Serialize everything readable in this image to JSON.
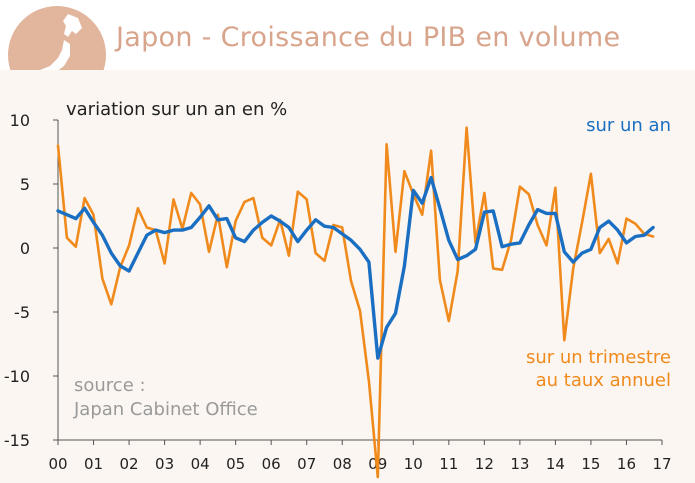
{
  "header": {
    "title": "Japon - Croissance du PIB en volume"
  },
  "chart_data": {
    "type": "line",
    "title": "Japon - Croissance du PIB en volume",
    "ylabel": "variation sur un an en %",
    "xlabel": "",
    "ylim": [
      -15,
      10
    ],
    "xlim": [
      2000,
      2017
    ],
    "y_ticks": [
      "10",
      "5",
      "0",
      "-5",
      "-10",
      "-15"
    ],
    "x_ticks": [
      "00",
      "01",
      "02",
      "03",
      "04",
      "05",
      "06",
      "07",
      "08",
      "09",
      "10",
      "11",
      "12",
      "13",
      "14",
      "15",
      "16",
      "17"
    ],
    "source": "source :\nJapan Cabinet Office",
    "series": [
      {
        "name": "sur un trimestre au taux annuel",
        "label_lines": [
          "sur un trimestre",
          "au taux annuel"
        ],
        "color": "#f08a1c",
        "x": [
          2000.0,
          2000.25,
          2000.5,
          2000.75,
          2001.0,
          2001.25,
          2001.5,
          2001.75,
          2002.0,
          2002.25,
          2002.5,
          2002.75,
          2003.0,
          2003.25,
          2003.5,
          2003.75,
          2004.0,
          2004.25,
          2004.5,
          2004.75,
          2005.0,
          2005.25,
          2005.5,
          2005.75,
          2006.0,
          2006.25,
          2006.5,
          2006.75,
          2007.0,
          2007.25,
          2007.5,
          2007.75,
          2008.0,
          2008.25,
          2008.5,
          2008.75,
          2009.0,
          2009.25,
          2009.5,
          2009.75,
          2010.0,
          2010.25,
          2010.5,
          2010.75,
          2011.0,
          2011.25,
          2011.5,
          2011.75,
          2012.0,
          2012.25,
          2012.5,
          2012.75,
          2013.0,
          2013.25,
          2013.5,
          2013.75,
          2014.0,
          2014.25,
          2014.5,
          2014.75,
          2015.0,
          2015.25,
          2015.5,
          2015.75,
          2016.0,
          2016.25,
          2016.5,
          2016.75
        ],
        "values": [
          8.0,
          0.8,
          0.1,
          3.9,
          2.6,
          -2.4,
          -4.4,
          -1.5,
          0.2,
          3.1,
          1.6,
          1.4,
          -1.2,
          3.8,
          1.5,
          4.3,
          3.4,
          -0.3,
          2.6,
          -1.5,
          2.1,
          3.6,
          3.9,
          0.8,
          0.2,
          2.2,
          -0.6,
          4.4,
          3.8,
          -0.4,
          -1.0,
          1.8,
          1.6,
          -2.6,
          -4.9,
          -10.4,
          -17.9,
          8.1,
          -0.3,
          6.0,
          4.2,
          2.6,
          7.6,
          -2.5,
          -5.7,
          -1.8,
          9.4,
          0.4,
          4.3,
          -1.6,
          -1.7,
          0.6,
          4.8,
          4.2,
          1.8,
          0.2,
          4.7,
          -7.2,
          -1.6,
          2.0,
          5.8,
          -0.4,
          0.7,
          -1.2,
          2.3,
          1.9,
          1.1,
          0.9
        ]
      },
      {
        "name": "sur un an",
        "label_lines": [
          "sur un an"
        ],
        "color": "#1a6fc2",
        "x": [
          2000.0,
          2000.25,
          2000.5,
          2000.75,
          2001.0,
          2001.25,
          2001.5,
          2001.75,
          2002.0,
          2002.25,
          2002.5,
          2002.75,
          2003.0,
          2003.25,
          2003.5,
          2003.75,
          2004.0,
          2004.25,
          2004.5,
          2004.75,
          2005.0,
          2005.25,
          2005.5,
          2005.75,
          2006.0,
          2006.25,
          2006.5,
          2006.75,
          2007.0,
          2007.25,
          2007.5,
          2007.75,
          2008.0,
          2008.25,
          2008.5,
          2008.75,
          2009.0,
          2009.25,
          2009.5,
          2009.75,
          2010.0,
          2010.25,
          2010.5,
          2010.75,
          2011.0,
          2011.25,
          2011.5,
          2011.75,
          2012.0,
          2012.25,
          2012.5,
          2012.75,
          2013.0,
          2013.25,
          2013.5,
          2013.75,
          2014.0,
          2014.25,
          2014.5,
          2014.75,
          2015.0,
          2015.25,
          2015.5,
          2015.75,
          2016.0,
          2016.25,
          2016.5,
          2016.75
        ],
        "values": [
          2.9,
          2.6,
          2.3,
          3.1,
          2.0,
          1.0,
          -0.4,
          -1.4,
          -1.8,
          -0.4,
          1.0,
          1.4,
          1.2,
          1.4,
          1.4,
          1.6,
          2.4,
          3.3,
          2.2,
          2.3,
          0.8,
          0.5,
          1.4,
          2.0,
          2.5,
          2.1,
          1.6,
          0.5,
          1.4,
          2.2,
          1.7,
          1.6,
          1.1,
          0.6,
          -0.1,
          -1.1,
          -8.6,
          -6.2,
          -5.1,
          -1.4,
          4.5,
          3.5,
          5.5,
          3.1,
          0.6,
          -0.9,
          -0.6,
          -0.1,
          2.8,
          2.9,
          0.1,
          0.3,
          0.4,
          1.8,
          3.0,
          2.7,
          2.7,
          -0.3,
          -1.1,
          -0.4,
          -0.1,
          1.6,
          2.1,
          1.4,
          0.4,
          0.9,
          1.0,
          1.6
        ]
      }
    ]
  }
}
